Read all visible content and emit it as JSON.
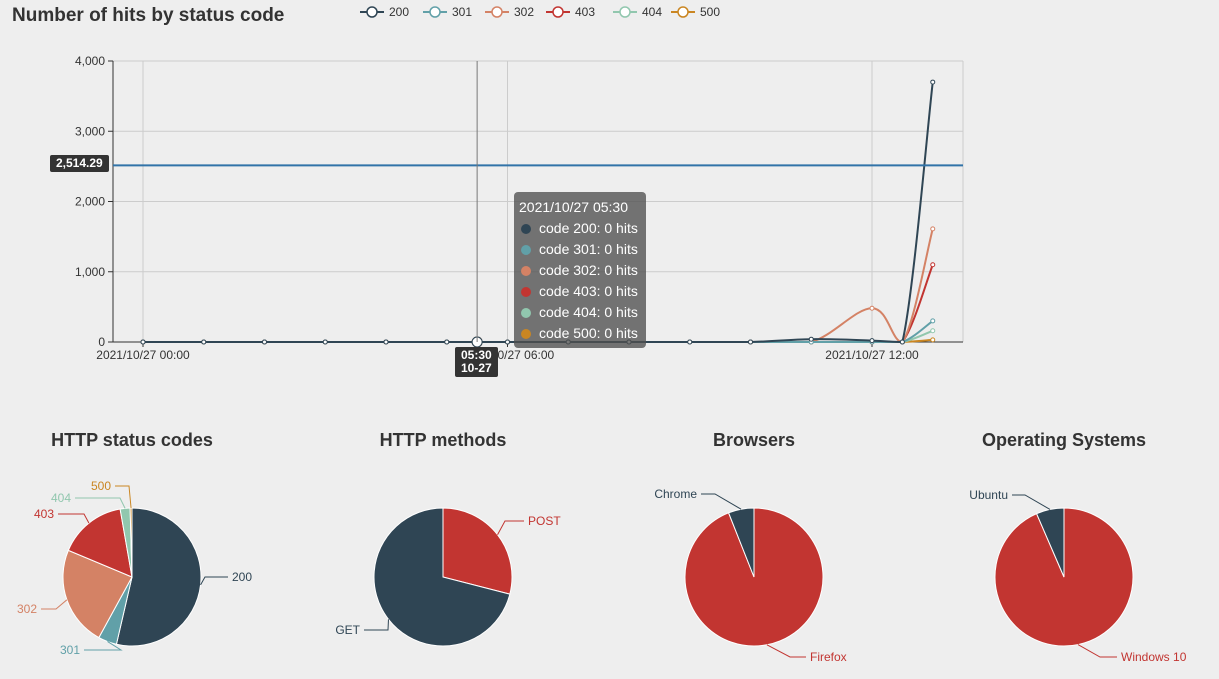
{
  "line_chart": {
    "title": "Number of hits by status code",
    "legend": [
      "200",
      "301",
      "302",
      "403",
      "404",
      "500"
    ],
    "y_ticks": [
      "0",
      "1,000",
      "2,000",
      "3,000",
      "4,000"
    ],
    "x_ticks": [
      "2021/10/27 00:00",
      "2021/10/27 06:00",
      "2021/10/27 12:00"
    ],
    "crosshair_y_label": "2,514.29",
    "crosshair_x_label_time": "05:30",
    "crosshair_x_label_date": "10-27",
    "tooltip": {
      "header": "2021/10/27 05:30",
      "rows": [
        "code 200: 0 hits",
        "code 301: 0 hits",
        "code 302: 0 hits",
        "code 403: 0 hits",
        "code 404: 0 hits",
        "code 500: 0 hits"
      ]
    }
  },
  "pies": {
    "status": {
      "title": "HTTP status codes"
    },
    "methods": {
      "title": "HTTP methods"
    },
    "browsers": {
      "title": "Browsers"
    },
    "os": {
      "title": "Operating Systems"
    }
  },
  "chart_data": [
    {
      "type": "line",
      "title": "Number of hits by status code",
      "x_unit": "time (2021/10/27)",
      "x": [
        "00:00",
        "01:00",
        "02:00",
        "03:00",
        "04:00",
        "05:00",
        "05:30",
        "06:00",
        "07:00",
        "08:00",
        "09:00",
        "10:00",
        "11:00",
        "12:00",
        "12:30",
        "13:00"
      ],
      "ylim": [
        0,
        4000
      ],
      "grid": true,
      "legend_position": "top",
      "series": [
        {
          "name": "200",
          "color": "#2f4554",
          "values": [
            0,
            0,
            0,
            0,
            0,
            0,
            0,
            0,
            0,
            0,
            0,
            0,
            40,
            20,
            0,
            3700
          ]
        },
        {
          "name": "301",
          "color": "#61a0a8",
          "values": [
            0,
            0,
            0,
            0,
            0,
            0,
            0,
            0,
            0,
            0,
            0,
            0,
            0,
            0,
            0,
            300
          ]
        },
        {
          "name": "302",
          "color": "#d48265",
          "values": [
            0,
            0,
            0,
            0,
            0,
            0,
            0,
            0,
            0,
            0,
            0,
            0,
            0,
            480,
            0,
            1610
          ]
        },
        {
          "name": "403",
          "color": "#c23531",
          "values": [
            0,
            0,
            0,
            0,
            0,
            0,
            0,
            0,
            0,
            0,
            0,
            0,
            0,
            0,
            0,
            1100
          ]
        },
        {
          "name": "404",
          "color": "#91c7ae",
          "values": [
            0,
            0,
            0,
            0,
            0,
            0,
            0,
            0,
            0,
            0,
            0,
            0,
            0,
            0,
            0,
            160
          ]
        },
        {
          "name": "500",
          "color": "#ca8622",
          "values": [
            0,
            0,
            0,
            0,
            0,
            0,
            0,
            0,
            0,
            0,
            0,
            0,
            0,
            0,
            0,
            30
          ]
        }
      ],
      "markline_value": 2514.29
    },
    {
      "type": "pie",
      "title": "HTTP status codes",
      "labels": [
        "200",
        "301",
        "302",
        "403",
        "404",
        "500"
      ],
      "values": [
        3700,
        300,
        1610,
        1100,
        160,
        30
      ],
      "colors": [
        "#2f4554",
        "#61a0a8",
        "#d48265",
        "#c23531",
        "#91c7ae",
        "#ca8622"
      ]
    },
    {
      "type": "pie",
      "title": "HTTP methods",
      "labels": [
        "POST",
        "GET"
      ],
      "values": [
        29,
        71
      ],
      "colors": [
        "#c23531",
        "#2f4554"
      ]
    },
    {
      "type": "pie",
      "title": "Browsers",
      "labels": [
        "Firefox",
        "Chrome"
      ],
      "values": [
        94,
        6
      ],
      "colors": [
        "#c23531",
        "#2f4554"
      ]
    },
    {
      "type": "pie",
      "title": "Operating Systems",
      "labels": [
        "Windows 10",
        "Ubuntu"
      ],
      "values": [
        93.5,
        6.5
      ],
      "colors": [
        "#c23531",
        "#2f4554"
      ]
    }
  ]
}
